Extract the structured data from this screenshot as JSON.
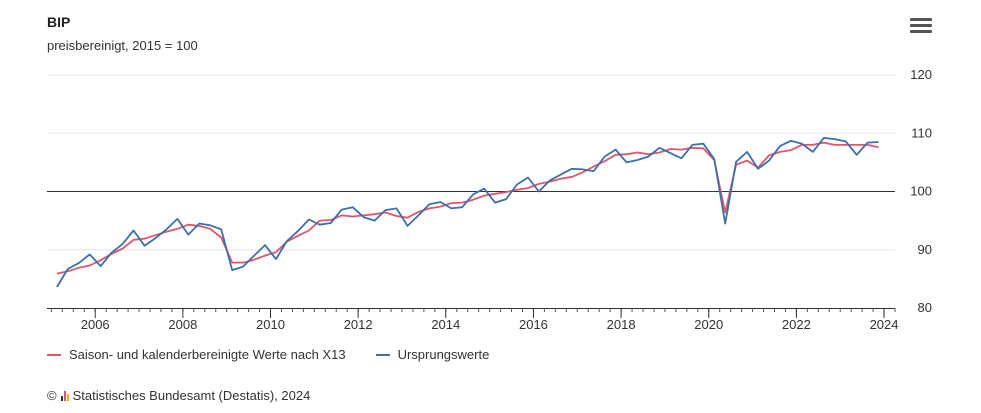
{
  "header": {
    "title": "BIP",
    "subtitle": "preisbereinigt, 2015 = 100",
    "menu_icon": "hamburger-menu-icon"
  },
  "footer": {
    "copyright_symbol": "©",
    "source": "Statistisches Bundesamt (Destatis), 2024",
    "logo_icon": "destatis-logo-icon"
  },
  "colors": {
    "seasonal": "#e0566a",
    "original": "#3f6fa8",
    "grid": "#e6e6e6",
    "reference": "#333333"
  },
  "chart_data": {
    "type": "line",
    "title": "BIP",
    "subtitle": "preisbereinigt, 2015 = 100",
    "x_ticks": [
      2006,
      2008,
      2010,
      2012,
      2014,
      2016,
      2018,
      2020,
      2022,
      2024
    ],
    "y_ticks": [
      80,
      90,
      100,
      110,
      120
    ],
    "xlim": [
      2004.9,
      2024.25
    ],
    "ylim": [
      80,
      120
    ],
    "reference_line": 100,
    "grid": true,
    "y_axis_position": "right",
    "legend_position": "bottom-left",
    "series": [
      {
        "name": "Saison- und kalenderbereinigte Werte nach X13",
        "color": "#e0566a",
        "points": [
          [
            2005.125,
            85.9
          ],
          [
            2005.375,
            86.3
          ],
          [
            2005.625,
            86.9
          ],
          [
            2005.875,
            87.3
          ],
          [
            2006.125,
            88.2
          ],
          [
            2006.375,
            89.3
          ],
          [
            2006.625,
            90.2
          ],
          [
            2006.875,
            91.7
          ],
          [
            2007.125,
            91.9
          ],
          [
            2007.375,
            92.5
          ],
          [
            2007.625,
            93.1
          ],
          [
            2007.875,
            93.6
          ],
          [
            2008.125,
            94.3
          ],
          [
            2008.375,
            94.1
          ],
          [
            2008.625,
            93.6
          ],
          [
            2008.875,
            92.1
          ],
          [
            2009.125,
            87.8
          ],
          [
            2009.375,
            87.8
          ],
          [
            2009.625,
            88.3
          ],
          [
            2009.875,
            89.0
          ],
          [
            2010.125,
            89.6
          ],
          [
            2010.375,
            91.4
          ],
          [
            2010.625,
            92.4
          ],
          [
            2010.875,
            93.3
          ],
          [
            2011.125,
            95.0
          ],
          [
            2011.375,
            95.1
          ],
          [
            2011.625,
            95.9
          ],
          [
            2011.875,
            95.7
          ],
          [
            2012.125,
            95.9
          ],
          [
            2012.375,
            96.1
          ],
          [
            2012.625,
            96.4
          ],
          [
            2012.875,
            95.8
          ],
          [
            2013.125,
            95.5
          ],
          [
            2013.375,
            96.5
          ],
          [
            2013.625,
            97.1
          ],
          [
            2013.875,
            97.4
          ],
          [
            2014.125,
            98.0
          ],
          [
            2014.375,
            98.1
          ],
          [
            2014.625,
            98.6
          ],
          [
            2014.875,
            99.3
          ],
          [
            2015.125,
            99.6
          ],
          [
            2015.375,
            99.9
          ],
          [
            2015.625,
            100.3
          ],
          [
            2015.875,
            100.6
          ],
          [
            2016.125,
            101.3
          ],
          [
            2016.375,
            101.7
          ],
          [
            2016.625,
            102.2
          ],
          [
            2016.875,
            102.5
          ],
          [
            2017.125,
            103.3
          ],
          [
            2017.375,
            104.3
          ],
          [
            2017.625,
            105.2
          ],
          [
            2017.875,
            106.3
          ],
          [
            2018.125,
            106.4
          ],
          [
            2018.375,
            106.7
          ],
          [
            2018.625,
            106.4
          ],
          [
            2018.875,
            106.7
          ],
          [
            2019.125,
            107.3
          ],
          [
            2019.375,
            107.2
          ],
          [
            2019.625,
            107.5
          ],
          [
            2019.875,
            107.4
          ],
          [
            2020.125,
            105.4
          ],
          [
            2020.375,
            96.4
          ],
          [
            2020.625,
            104.6
          ],
          [
            2020.875,
            105.3
          ],
          [
            2021.125,
            104.1
          ],
          [
            2021.375,
            106.2
          ],
          [
            2021.625,
            106.8
          ],
          [
            2021.875,
            107.1
          ],
          [
            2022.125,
            108.0
          ],
          [
            2022.375,
            108.0
          ],
          [
            2022.625,
            108.4
          ],
          [
            2022.875,
            108.0
          ],
          [
            2023.125,
            108.0
          ],
          [
            2023.375,
            108.0
          ],
          [
            2023.625,
            108.0
          ],
          [
            2023.875,
            107.6
          ]
        ]
      },
      {
        "name": "Ursprungswerte",
        "color": "#3f6fa8",
        "points": [
          [
            2005.125,
            83.6
          ],
          [
            2005.375,
            86.7
          ],
          [
            2005.625,
            87.7
          ],
          [
            2005.875,
            89.2
          ],
          [
            2006.125,
            87.2
          ],
          [
            2006.375,
            89.5
          ],
          [
            2006.625,
            91.0
          ],
          [
            2006.875,
            93.3
          ],
          [
            2007.125,
            90.7
          ],
          [
            2007.375,
            92.0
          ],
          [
            2007.625,
            93.5
          ],
          [
            2007.875,
            95.3
          ],
          [
            2008.125,
            92.6
          ],
          [
            2008.375,
            94.5
          ],
          [
            2008.625,
            94.2
          ],
          [
            2008.875,
            93.5
          ],
          [
            2009.125,
            86.5
          ],
          [
            2009.375,
            87.1
          ],
          [
            2009.625,
            89.0
          ],
          [
            2009.875,
            90.8
          ],
          [
            2010.125,
            88.4
          ],
          [
            2010.375,
            91.5
          ],
          [
            2010.625,
            93.2
          ],
          [
            2010.875,
            95.2
          ],
          [
            2011.125,
            94.3
          ],
          [
            2011.375,
            94.6
          ],
          [
            2011.625,
            96.9
          ],
          [
            2011.875,
            97.3
          ],
          [
            2012.125,
            95.6
          ],
          [
            2012.375,
            95.0
          ],
          [
            2012.625,
            96.8
          ],
          [
            2012.875,
            97.1
          ],
          [
            2013.125,
            94.1
          ],
          [
            2013.375,
            95.9
          ],
          [
            2013.625,
            97.8
          ],
          [
            2013.875,
            98.2
          ],
          [
            2014.125,
            97.1
          ],
          [
            2014.375,
            97.3
          ],
          [
            2014.625,
            99.5
          ],
          [
            2014.875,
            100.5
          ],
          [
            2015.125,
            98.1
          ],
          [
            2015.375,
            98.7
          ],
          [
            2015.625,
            101.2
          ],
          [
            2015.875,
            102.4
          ],
          [
            2016.125,
            100.0
          ],
          [
            2016.375,
            101.9
          ],
          [
            2016.625,
            102.9
          ],
          [
            2016.875,
            103.9
          ],
          [
            2017.125,
            103.8
          ],
          [
            2017.375,
            103.5
          ],
          [
            2017.625,
            106.0
          ],
          [
            2017.875,
            107.2
          ],
          [
            2018.125,
            105.0
          ],
          [
            2018.375,
            105.4
          ],
          [
            2018.625,
            106.0
          ],
          [
            2018.875,
            107.5
          ],
          [
            2019.125,
            106.6
          ],
          [
            2019.375,
            105.7
          ],
          [
            2019.625,
            108.0
          ],
          [
            2019.875,
            108.2
          ],
          [
            2020.125,
            105.6
          ],
          [
            2020.375,
            94.5
          ],
          [
            2020.625,
            105.1
          ],
          [
            2020.875,
            106.8
          ],
          [
            2021.125,
            103.9
          ],
          [
            2021.375,
            105.3
          ],
          [
            2021.625,
            107.8
          ],
          [
            2021.875,
            108.7
          ],
          [
            2022.125,
            108.2
          ],
          [
            2022.375,
            106.8
          ],
          [
            2022.625,
            109.2
          ],
          [
            2022.875,
            109.0
          ],
          [
            2023.125,
            108.6
          ],
          [
            2023.375,
            106.3
          ],
          [
            2023.625,
            108.4
          ],
          [
            2023.875,
            108.5
          ]
        ]
      }
    ]
  }
}
